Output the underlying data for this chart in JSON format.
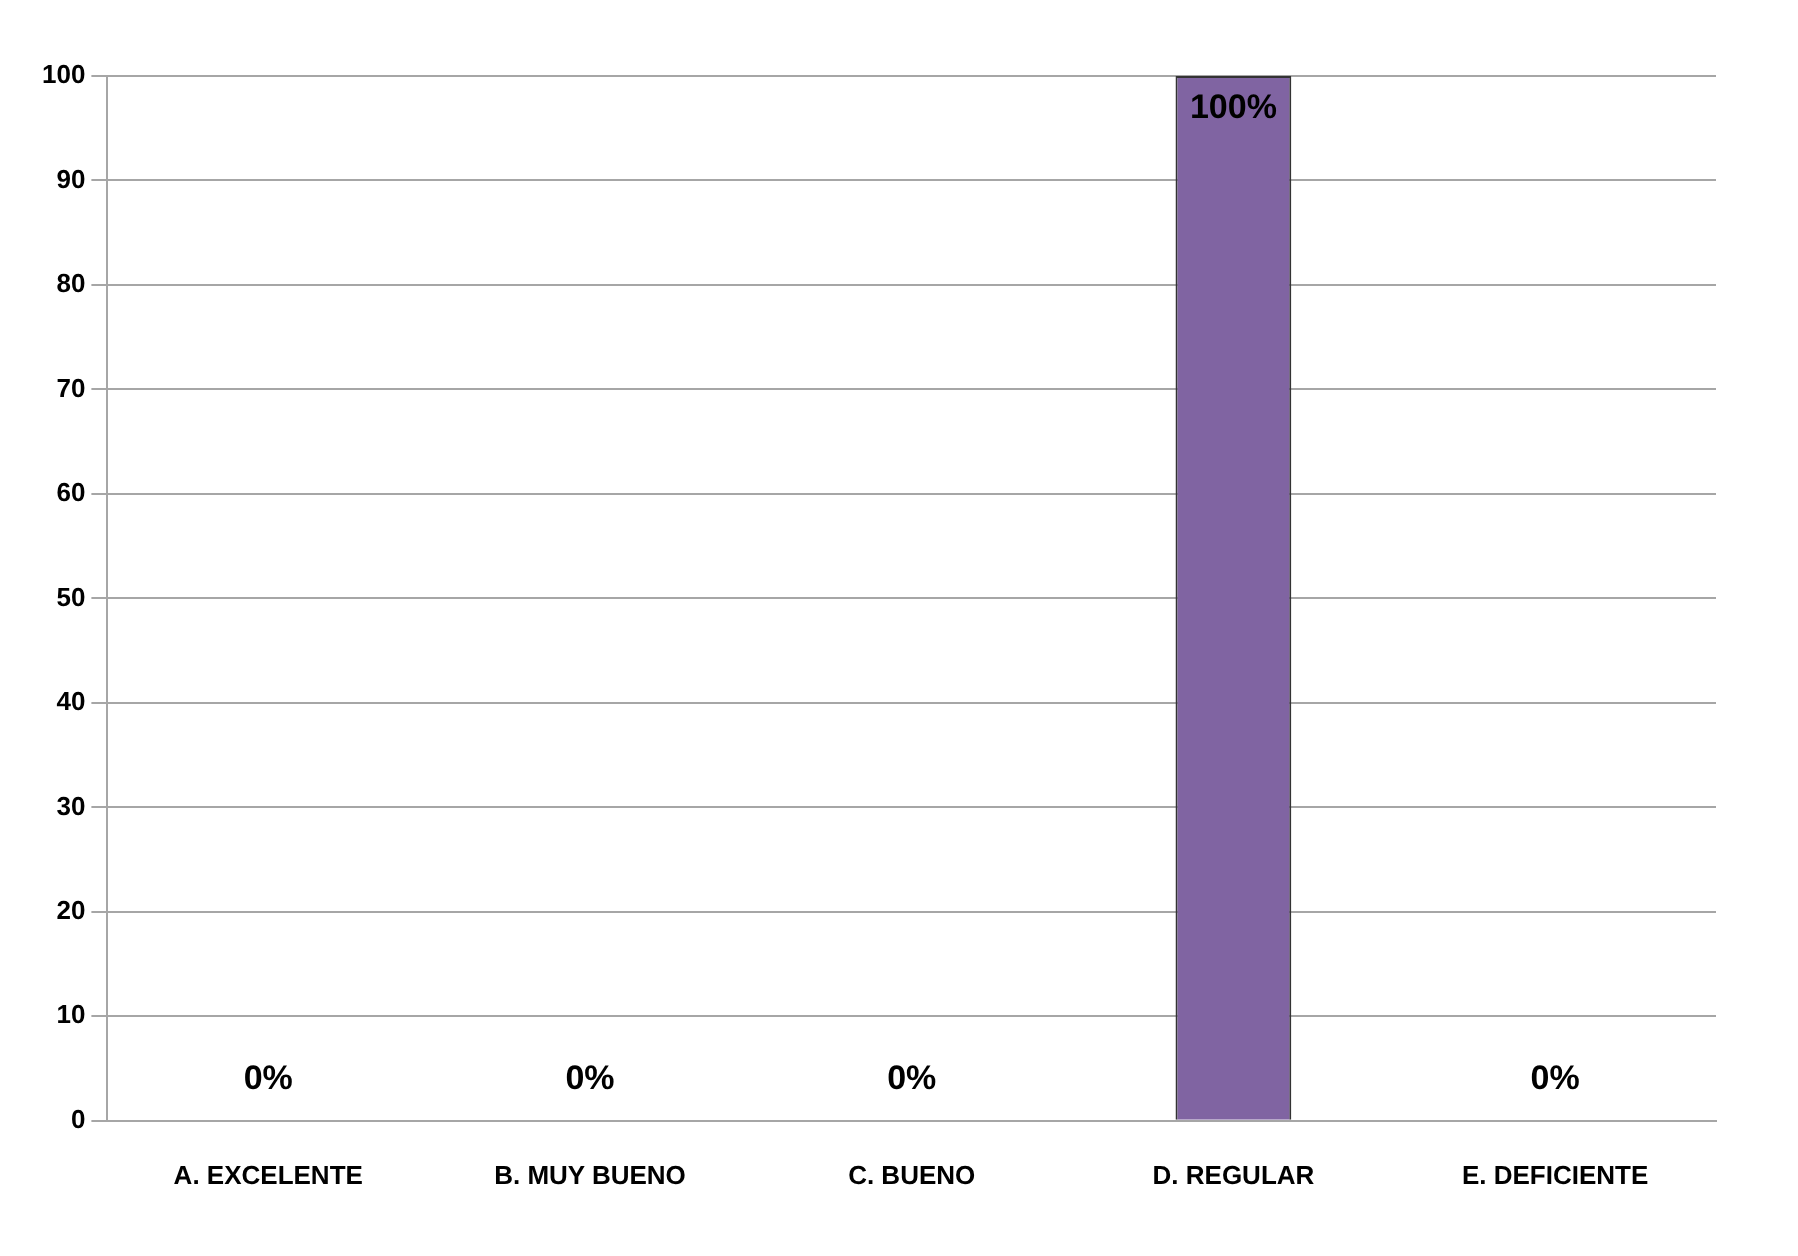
{
  "chart_data": {
    "type": "bar",
    "categories": [
      "A. EXCELENTE",
      "B. MUY BUENO",
      "C. BUENO",
      "D. REGULAR",
      "E. DEFICIENTE"
    ],
    "values": [
      0,
      0,
      0,
      100,
      0
    ],
    "colors": [
      "#3b6497",
      "#a03a38",
      "#7d9a3e",
      "#8064a2",
      "#31859c"
    ],
    "value_labels": [
      "0%",
      "0%",
      "0%",
      "100%",
      "0%"
    ],
    "ylim": [
      0,
      100
    ],
    "yticks": [
      0,
      10,
      20,
      30,
      40,
      50,
      60,
      70,
      80,
      90,
      100
    ],
    "grid": "y",
    "legend": false
  }
}
